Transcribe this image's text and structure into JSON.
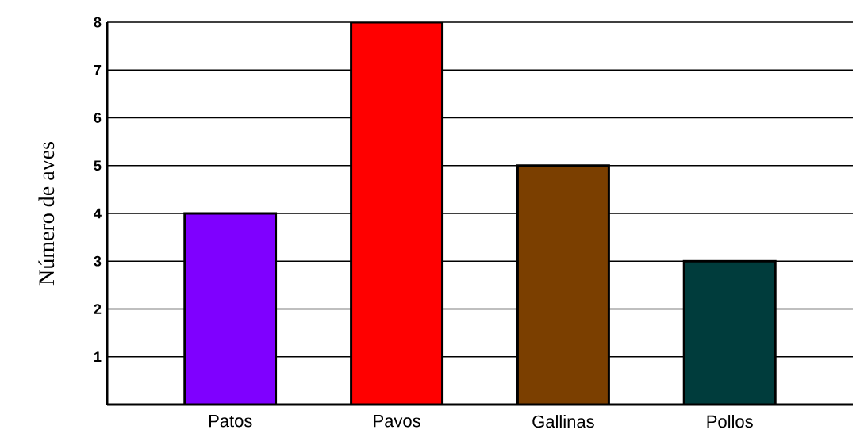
{
  "chart_data": {
    "type": "bar",
    "ylabel": "Número de aves",
    "categories": [
      "Patos",
      "Pavos",
      "Gallinas",
      "Pollos"
    ],
    "values": [
      4,
      8,
      5,
      3
    ],
    "colors": [
      "#7f00ff",
      "#ff0000",
      "#7b3f00",
      "#003c3c"
    ],
    "ylim": [
      0,
      8
    ],
    "yticks": [
      1,
      2,
      3,
      4,
      5,
      6,
      7,
      8
    ],
    "grid": "y"
  }
}
